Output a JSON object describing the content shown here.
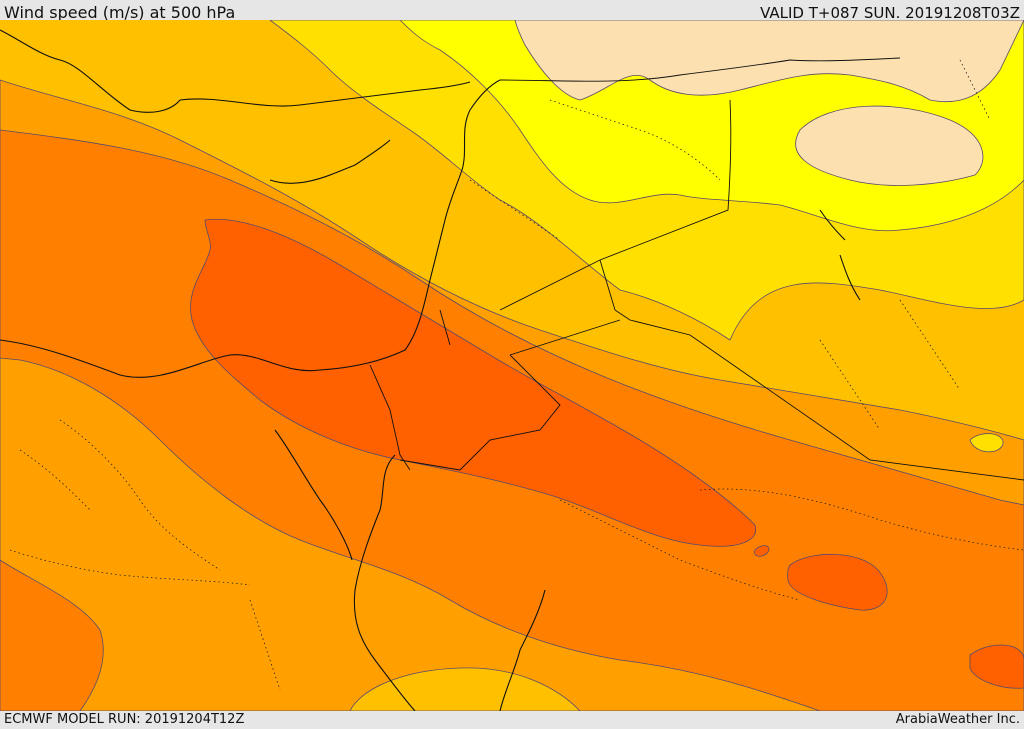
{
  "header": {
    "title": "Wind speed (m/s) at 500 hPa",
    "valid": "VALID T+087 SUN. 20191208T03Z"
  },
  "footer": {
    "model_run": "ECMWF MODEL RUN: 20191204T12Z",
    "credit": "ArabiaWeather Inc."
  },
  "colors": {
    "band_pale": "#fde0b0",
    "band_yellow": "#ffff00",
    "band_gold": "#ffe000",
    "band_amber": "#ffc000",
    "band_orange": "#ffa000",
    "band_deep_orange": "#ff8000",
    "band_red_orange": "#ff6000"
  }
}
